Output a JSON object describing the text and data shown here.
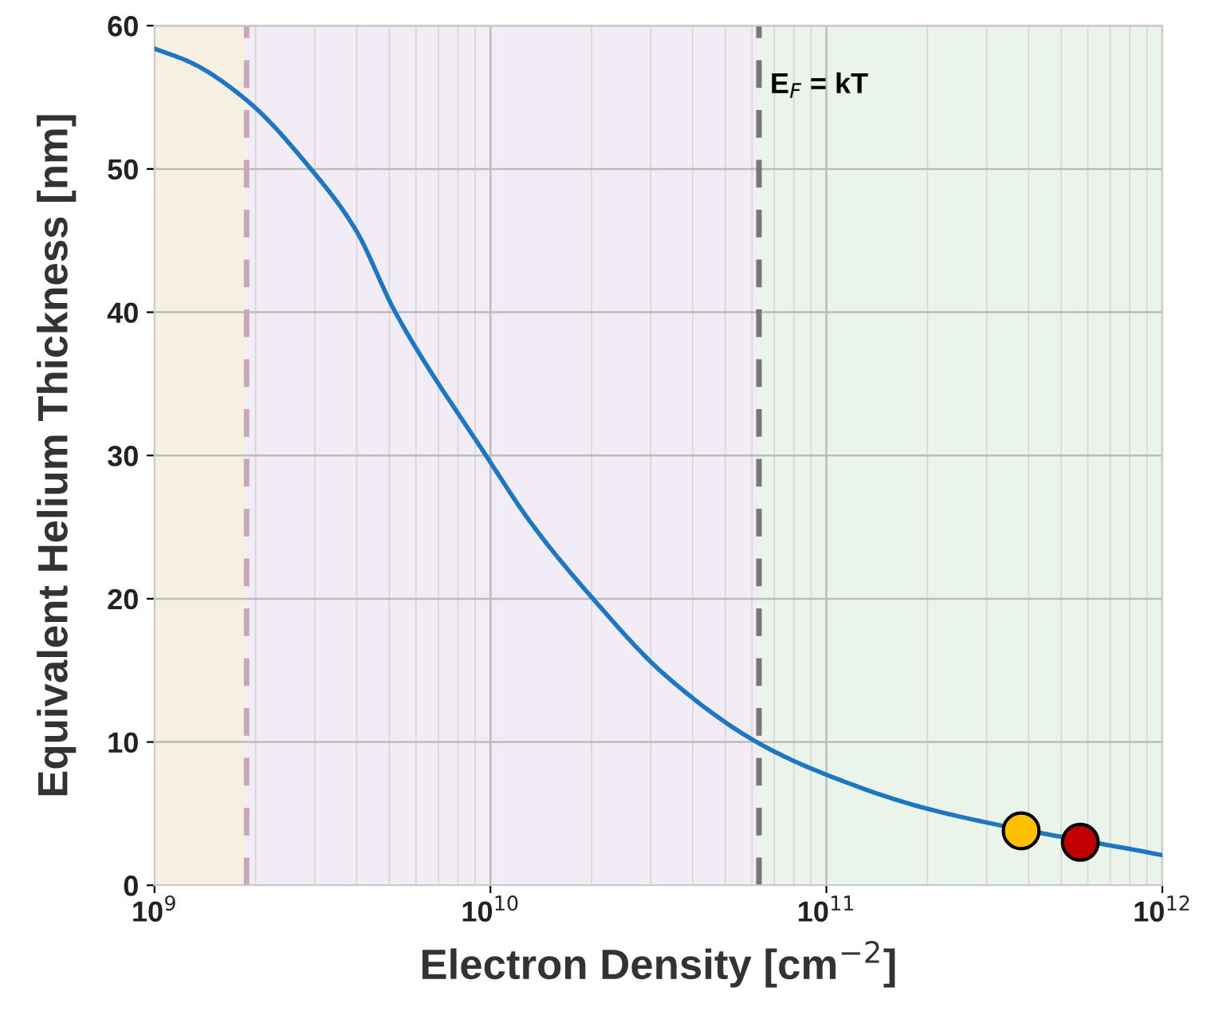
{
  "chart_data": {
    "type": "line",
    "xlabel": "Electron Density [cm$^{−2}$]",
    "ylabel": "Equivalent Helium Thickness [nm]",
    "log": "x",
    "xlim": [
      1000000000.0,
      1000000000000.0
    ],
    "ylim": [
      0,
      60
    ],
    "xticks": [
      {
        "value": 1000000000.0,
        "label": "10$^{9}$"
      },
      {
        "value": 10000000000.0,
        "label": "10$^{10}$"
      },
      {
        "value": 100000000000.0,
        "label": "10$^{11}$"
      },
      {
        "value": 1000000000000.0,
        "label": "10$^{12}$"
      }
    ],
    "yticks": [
      0,
      10,
      20,
      30,
      40,
      50,
      60
    ],
    "grid": true,
    "series": [
      {
        "type": "line",
        "color": "#1f77c4",
        "marker": "none",
        "line_style": "solid",
        "x": [
          1000000000.0,
          1290000000.0,
          1880000000.0,
          2920000000.0,
          3960000000.0,
          5210000000.0,
          9700000000.0,
          13200000000.0,
          20200000000.0,
          33000000000.0,
          62000000000.0,
          98000000000.0,
          203000000000.0,
          1000000000000.0
        ],
        "values": [
          58.4,
          57.4,
          54.8,
          50,
          45.8,
          40,
          30,
          25.3,
          20,
          14.7,
          10,
          7.8,
          5.3,
          2.1
        ]
      },
      {
        "type": "scatter",
        "color": "#ffc000",
        "marker": "circle",
        "x": [
          380000000000.0
        ],
        "values": [
          3.8
        ]
      },
      {
        "type": "scatter",
        "color": "#c00000",
        "marker": "circle",
        "x": [
          570000000000.0
        ],
        "values": [
          3.0
        ]
      }
    ],
    "bands": [
      {
        "axis": "x",
        "from": 1000000000.0,
        "to": 1880000000.0,
        "color": "#f5f0e1"
      },
      {
        "axis": "x",
        "from": 1880000000.0,
        "to": 63000000000.0,
        "color": "#f1ecf5"
      },
      {
        "axis": "x",
        "from": 63000000000.0,
        "to": 1000000000000.0,
        "color": "#eaf4ea"
      }
    ],
    "ref_lines": [
      {
        "axis": "x",
        "value": 1880000000.0,
        "color": "#c8a8b8",
        "line_style": "dashed"
      },
      {
        "axis": "x",
        "value": 63000000000.0,
        "color": "#777777",
        "line_style": "dashed",
        "label": "E$_{F}$ = kT"
      }
    ]
  }
}
